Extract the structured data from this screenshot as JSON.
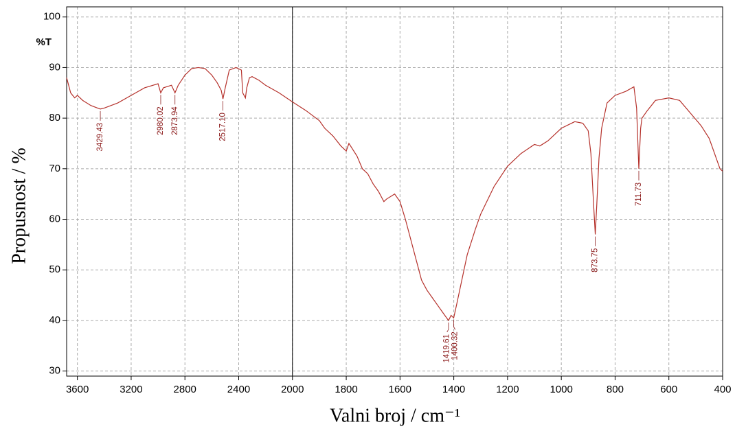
{
  "chart_data": {
    "type": "line",
    "xlabel": "Valni broj / cm⁻¹",
    "ylabel": "Propusnost / %",
    "yunit": "%T",
    "color": "#b5312b",
    "grid": true,
    "xlim": [
      3680,
      400
    ],
    "xbreak": 2000,
    "ylim": [
      29,
      102
    ],
    "xticks": [
      3600,
      3200,
      2800,
      2400,
      2000,
      1800,
      1600,
      1400,
      1200,
      1000,
      800,
      600,
      400
    ],
    "yticks": [
      30,
      40,
      50,
      60,
      70,
      80,
      90,
      100
    ],
    "x": [
      3680,
      3650,
      3620,
      3600,
      3560,
      3500,
      3450,
      3429.43,
      3400,
      3300,
      3200,
      3100,
      3000,
      2980.02,
      2960,
      2900,
      2873.94,
      2850,
      2800,
      2750,
      2700,
      2650,
      2600,
      2560,
      2530,
      2517.1,
      2500,
      2470,
      2420,
      2380,
      2370,
      2350,
      2340,
      2320,
      2300,
      2250,
      2200,
      2100,
      2000,
      1950,
      1900,
      1880,
      1850,
      1820,
      1800,
      1790,
      1760,
      1740,
      1720,
      1700,
      1680,
      1660,
      1650,
      1620,
      1600,
      1580,
      1560,
      1540,
      1520,
      1500,
      1480,
      1460,
      1440,
      1419.61,
      1410,
      1400.32,
      1390,
      1370,
      1350,
      1320,
      1300,
      1250,
      1200,
      1150,
      1100,
      1080,
      1050,
      1000,
      950,
      920,
      900,
      890,
      880,
      873.75,
      868,
      860,
      850,
      830,
      800,
      760,
      730,
      720,
      711.73,
      705,
      700,
      680,
      650,
      600,
      560,
      520,
      480,
      450,
      430,
      410,
      400
    ],
    "values": [
      88,
      85,
      84,
      84.5,
      83.5,
      82.5,
      82,
      81.8,
      82,
      83,
      84.5,
      86,
      86.8,
      85,
      86,
      86.5,
      85,
      86.5,
      88.5,
      89.8,
      90,
      89.8,
      88.5,
      87,
      85.5,
      83.8,
      86,
      89.5,
      90,
      89.5,
      85,
      84,
      86,
      88,
      88.2,
      87.5,
      86.5,
      85,
      83.2,
      81.5,
      79.5,
      78,
      76.5,
      74.5,
      73.5,
      75,
      72.5,
      70,
      69,
      67,
      65.5,
      63.5,
      64,
      65,
      63.5,
      60,
      56,
      52,
      48,
      46,
      44.5,
      43,
      41.5,
      40,
      41,
      40.5,
      43,
      48,
      53,
      58,
      61,
      66.5,
      70.5,
      73,
      74.8,
      74.5,
      75.5,
      78,
      79.3,
      79,
      77.5,
      73,
      63,
      57,
      63,
      72,
      78,
      83,
      84.5,
      85.3,
      86.2,
      82,
      70,
      78,
      80,
      81.5,
      83.5,
      84,
      83.5,
      81,
      78.5,
      76,
      73,
      70,
      69.5
    ],
    "peaks": [
      3429.43,
      2980.02,
      2873.94,
      {
        "value": 2517.1,
        "label": "2517.10"
      },
      1419.61,
      1400.32,
      873.75,
      711.73
    ]
  }
}
